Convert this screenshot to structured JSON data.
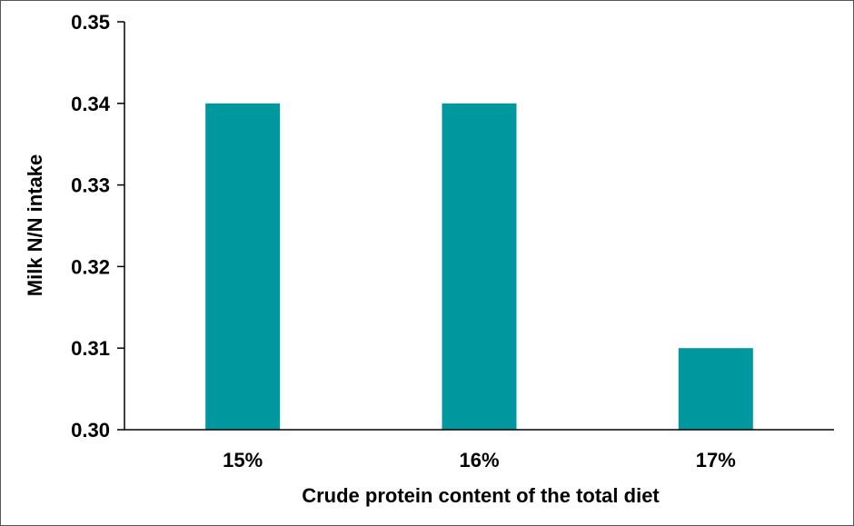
{
  "chart_data": {
    "type": "bar",
    "categories": [
      "15%",
      "16%",
      "17%"
    ],
    "values": [
      0.34,
      0.34,
      0.31
    ],
    "xlabel": "Crude protein content of the total diet",
    "ylabel": "Milk N/N intake",
    "ylim": [
      0.3,
      0.35
    ],
    "yticks": [
      "0.30",
      "0.31",
      "0.32",
      "0.33",
      "0.34",
      "0.35"
    ],
    "grid": false,
    "bar_color": "#00979F"
  }
}
